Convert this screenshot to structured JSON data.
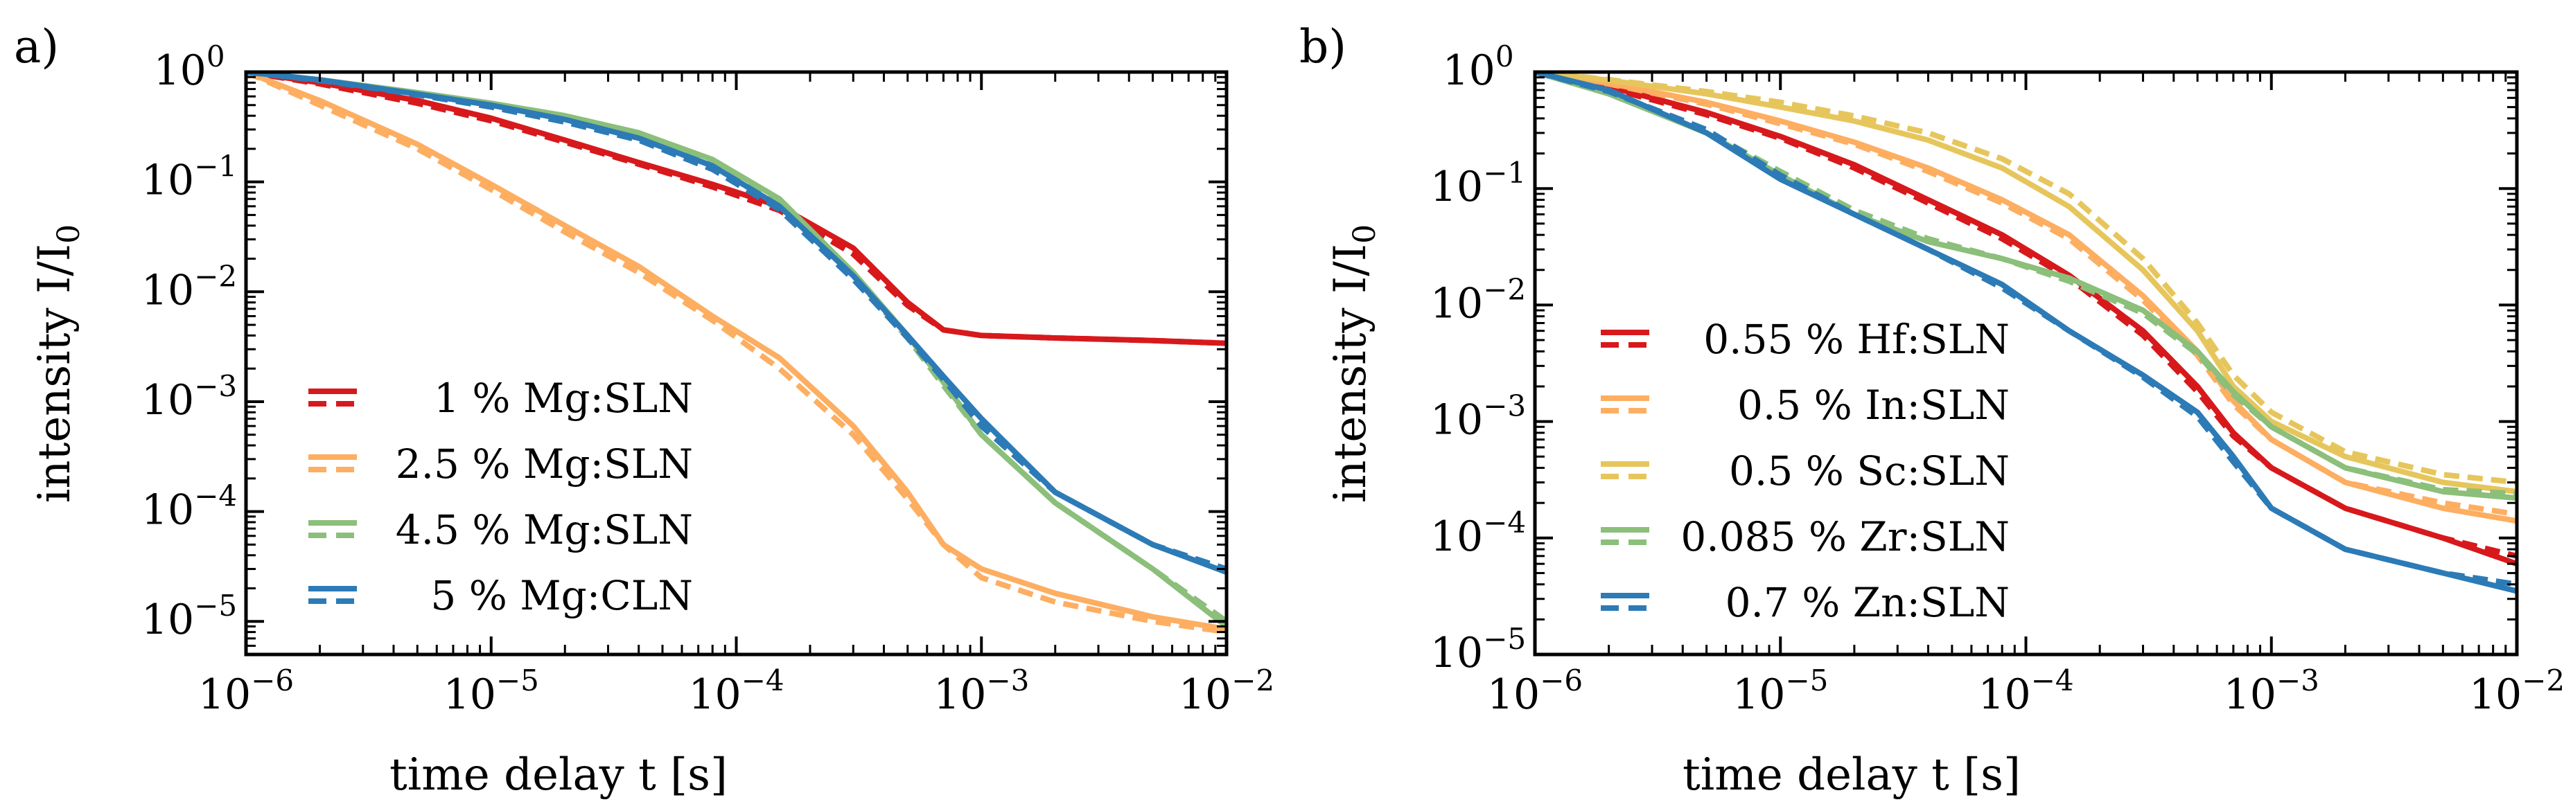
{
  "chart_data": [
    {
      "panel_label": "a)",
      "type": "line",
      "xscale": "log",
      "yscale": "log",
      "xlim": [
        1e-06,
        0.01
      ],
      "ylim": [
        5e-06,
        1
      ],
      "xlabel": "time delay t [s]",
      "ylabel": "intensity I/I",
      "ylabel_sub": "0",
      "x_ticks": [
        {
          "value": 1e-06,
          "base": "10",
          "exp": "−6"
        },
        {
          "value": 1e-05,
          "base": "10",
          "exp": "−5"
        },
        {
          "value": 0.0001,
          "base": "10",
          "exp": "−4"
        },
        {
          "value": 0.001,
          "base": "10",
          "exp": "−3"
        },
        {
          "value": 0.01,
          "base": "10",
          "exp": "−2"
        }
      ],
      "y_ticks": [
        {
          "value": 1,
          "base": "10",
          "exp": "0"
        },
        {
          "value": 0.1,
          "base": "10",
          "exp": "−1"
        },
        {
          "value": 0.01,
          "base": "10",
          "exp": "−2"
        },
        {
          "value": 0.001,
          "base": "10",
          "exp": "−3"
        },
        {
          "value": 0.0001,
          "base": "10",
          "exp": "−4"
        },
        {
          "value": 1e-05,
          "base": "10",
          "exp": "−5"
        }
      ],
      "legend_position": "lower-left",
      "series": [
        {
          "name": "1 % Mg:SLN",
          "color": "#d7191c",
          "x": [
            1e-06,
            2e-06,
            5e-06,
            1e-05,
            2e-05,
            4e-05,
            8e-05,
            0.00015,
            0.0003,
            0.0005,
            0.0007,
            0.001,
            0.002,
            0.005,
            0.01
          ],
          "y": [
            1,
            0.8,
            0.55,
            0.38,
            0.24,
            0.15,
            0.095,
            0.06,
            0.025,
            0.008,
            0.0045,
            0.004,
            0.0038,
            0.0036,
            0.0034
          ],
          "fit_y": [
            1,
            0.78,
            0.52,
            0.36,
            0.23,
            0.145,
            0.09,
            0.055,
            0.022,
            0.0075,
            0.0045,
            0.004,
            0.0038,
            0.0036,
            0.0034
          ]
        },
        {
          "name": "2.5 % Mg:SLN",
          "color": "#fdae61",
          "x": [
            1e-06,
            2e-06,
            5e-06,
            1e-05,
            2e-05,
            4e-05,
            8e-05,
            0.00015,
            0.0003,
            0.0005,
            0.0007,
            0.001,
            0.002,
            0.005,
            0.01
          ],
          "y": [
            1,
            0.55,
            0.22,
            0.095,
            0.04,
            0.017,
            0.006,
            0.0025,
            0.0006,
            0.00015,
            5e-05,
            3e-05,
            1.8e-05,
            1.1e-05,
            8.5e-06
          ],
          "fit_y": [
            1,
            0.5,
            0.2,
            0.085,
            0.035,
            0.015,
            0.0055,
            0.002,
            0.0005,
            0.00013,
            5e-05,
            2.5e-05,
            1.5e-05,
            1e-05,
            8e-06
          ]
        },
        {
          "name": "4.5 % Mg:SLN",
          "color": "#8bbf7a",
          "x": [
            1e-06,
            2e-06,
            5e-06,
            1e-05,
            2e-05,
            4e-05,
            8e-05,
            0.00015,
            0.0003,
            0.0005,
            0.0007,
            0.001,
            0.002,
            0.005,
            0.01
          ],
          "y": [
            1,
            0.85,
            0.65,
            0.52,
            0.4,
            0.28,
            0.16,
            0.07,
            0.015,
            0.004,
            0.0015,
            0.0005,
            0.00012,
            3e-05,
            9e-06
          ],
          "fit_y": [
            1,
            0.84,
            0.63,
            0.5,
            0.38,
            0.26,
            0.15,
            0.065,
            0.014,
            0.0038,
            0.0014,
            0.0005,
            0.00012,
            3e-05,
            1e-05
          ]
        },
        {
          "name": "5 % Mg:CLN",
          "color": "#2c7bb6",
          "x": [
            1e-06,
            2e-06,
            5e-06,
            1e-05,
            2e-05,
            4e-05,
            8e-05,
            0.00015,
            0.0003,
            0.0005,
            0.0007,
            0.001,
            0.002,
            0.005,
            0.01
          ],
          "y": [
            1,
            0.85,
            0.63,
            0.5,
            0.37,
            0.25,
            0.14,
            0.06,
            0.014,
            0.004,
            0.0017,
            0.0007,
            0.00015,
            5e-05,
            2.8e-05
          ],
          "fit_y": [
            1,
            0.84,
            0.62,
            0.48,
            0.35,
            0.24,
            0.13,
            0.056,
            0.013,
            0.0038,
            0.0016,
            0.0006,
            0.00015,
            5e-05,
            3e-05
          ]
        }
      ]
    },
    {
      "panel_label": "b)",
      "type": "line",
      "xscale": "log",
      "yscale": "log",
      "xlim": [
        1e-06,
        0.01
      ],
      "ylim": [
        1e-05,
        1
      ],
      "xlabel": "time delay t [s]",
      "ylabel": "intensity I/I",
      "ylabel_sub": "0",
      "x_ticks": [
        {
          "value": 1e-06,
          "base": "10",
          "exp": "−6"
        },
        {
          "value": 1e-05,
          "base": "10",
          "exp": "−5"
        },
        {
          "value": 0.0001,
          "base": "10",
          "exp": "−4"
        },
        {
          "value": 0.001,
          "base": "10",
          "exp": "−3"
        },
        {
          "value": 0.01,
          "base": "10",
          "exp": "−2"
        }
      ],
      "y_ticks": [
        {
          "value": 1,
          "base": "10",
          "exp": "0"
        },
        {
          "value": 0.1,
          "base": "10",
          "exp": "−1"
        },
        {
          "value": 0.01,
          "base": "10",
          "exp": "−2"
        },
        {
          "value": 0.001,
          "base": "10",
          "exp": "−3"
        },
        {
          "value": 0.0001,
          "base": "10",
          "exp": "−4"
        },
        {
          "value": 1e-05,
          "base": "10",
          "exp": "−5"
        }
      ],
      "legend_position": "lower-left",
      "series": [
        {
          "name": "0.55 % Hf:SLN",
          "color": "#d7191c",
          "x": [
            1e-06,
            2e-06,
            5e-06,
            1e-05,
            2e-05,
            4e-05,
            8e-05,
            0.00015,
            0.0003,
            0.0005,
            0.0007,
            0.001,
            0.002,
            0.005,
            0.01
          ],
          "y": [
            1,
            0.75,
            0.45,
            0.28,
            0.16,
            0.08,
            0.04,
            0.018,
            0.006,
            0.002,
            0.0008,
            0.0004,
            0.00018,
            0.0001,
            6e-05
          ],
          "fit_y": [
            1,
            0.73,
            0.43,
            0.27,
            0.15,
            0.075,
            0.037,
            0.017,
            0.0055,
            0.0018,
            0.00075,
            0.0004,
            0.00018,
            0.0001,
            7e-05
          ]
        },
        {
          "name": "0.5 % In:SLN",
          "color": "#fdae61",
          "x": [
            1e-06,
            2e-06,
            5e-06,
            1e-05,
            2e-05,
            4e-05,
            8e-05,
            0.00015,
            0.0003,
            0.0005,
            0.0007,
            0.001,
            0.002,
            0.005,
            0.01
          ],
          "y": [
            1,
            0.8,
            0.55,
            0.38,
            0.25,
            0.15,
            0.08,
            0.04,
            0.012,
            0.004,
            0.0015,
            0.0007,
            0.0003,
            0.00018,
            0.00014
          ],
          "fit_y": [
            1,
            0.79,
            0.53,
            0.36,
            0.24,
            0.14,
            0.075,
            0.037,
            0.011,
            0.0037,
            0.0014,
            0.0007,
            0.0003,
            0.0002,
            0.00016
          ]
        },
        {
          "name": "0.5 % Sc:SLN",
          "color": "#e6c65c",
          "x": [
            1e-06,
            2e-06,
            5e-06,
            1e-05,
            2e-05,
            4e-05,
            8e-05,
            0.00015,
            0.0003,
            0.0005,
            0.0007,
            0.001,
            0.002,
            0.005,
            0.01
          ],
          "y": [
            1,
            0.85,
            0.65,
            0.5,
            0.38,
            0.26,
            0.15,
            0.07,
            0.02,
            0.006,
            0.002,
            0.001,
            0.0005,
            0.0003,
            0.00025
          ],
          "fit_y": [
            1,
            0.86,
            0.68,
            0.55,
            0.42,
            0.3,
            0.18,
            0.09,
            0.025,
            0.007,
            0.0025,
            0.0012,
            0.00055,
            0.00035,
            0.0003
          ]
        },
        {
          "name": "0.085 % Zr:SLN",
          "color": "#8bbf7a",
          "x": [
            1e-06,
            2e-06,
            5e-06,
            1e-05,
            2e-05,
            4e-05,
            8e-05,
            0.00015,
            0.0003,
            0.0005,
            0.0007,
            0.001,
            0.002,
            0.005,
            0.01
          ],
          "y": [
            1,
            0.65,
            0.3,
            0.13,
            0.06,
            0.035,
            0.025,
            0.017,
            0.009,
            0.004,
            0.0018,
            0.0009,
            0.0004,
            0.00025,
            0.00022
          ],
          "fit_y": [
            1,
            0.66,
            0.31,
            0.14,
            0.065,
            0.037,
            0.025,
            0.016,
            0.0085,
            0.0038,
            0.0017,
            0.0009,
            0.0004,
            0.00026,
            0.00024
          ]
        },
        {
          "name": "0.7 % Zn:SLN",
          "color": "#2c7bb6",
          "x": [
            1e-06,
            2e-06,
            5e-06,
            1e-05,
            2e-05,
            4e-05,
            8e-05,
            0.00015,
            0.0003,
            0.0005,
            0.0007,
            0.001,
            0.002,
            0.005,
            0.01
          ],
          "y": [
            1,
            0.7,
            0.3,
            0.12,
            0.06,
            0.03,
            0.015,
            0.006,
            0.0025,
            0.0012,
            0.0005,
            0.00018,
            8e-05,
            5e-05,
            3.5e-05
          ],
          "fit_y": [
            1,
            0.68,
            0.32,
            0.13,
            0.06,
            0.03,
            0.014,
            0.006,
            0.0024,
            0.0011,
            0.00045,
            0.00018,
            8e-05,
            5e-05,
            4e-05
          ]
        }
      ]
    }
  ]
}
